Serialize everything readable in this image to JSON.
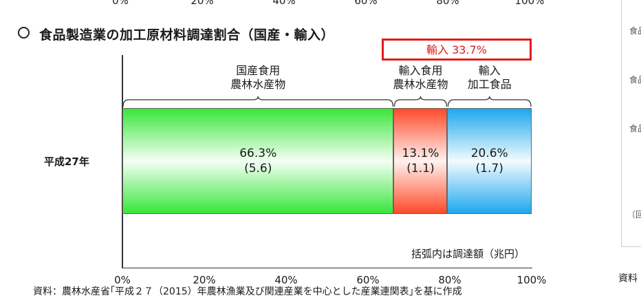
{
  "top_axis": {
    "ticks": [
      "0%",
      "20%",
      "40%",
      "60%",
      "80%",
      "100%"
    ]
  },
  "title": "食品製造業の加工原材料調達割合（国産・輸入）",
  "import_callout": "輸入  33.7%",
  "chart_data": {
    "type": "bar",
    "orientation": "horizontal",
    "stacked": true,
    "categories": [
      "平成27年"
    ],
    "series": [
      {
        "name": "国産食用\n農林水産物",
        "values": [
          66.3
        ],
        "amount": [
          5.6
        ],
        "pct_label": "66.3%",
        "amount_label": "(5.6)",
        "color": "#39e639"
      },
      {
        "name": "輸入食用\n農林水産物",
        "values": [
          13.1
        ],
        "amount": [
          1.1
        ],
        "pct_label": "13.1%",
        "amount_label": "(1.1)",
        "color": "#ff4a2a"
      },
      {
        "name": "輸入\n加工食品",
        "values": [
          20.6
        ],
        "amount": [
          1.7
        ],
        "pct_label": "20.6%",
        "amount_label": "(1.7)",
        "color": "#1ea7ec"
      }
    ],
    "xlim": [
      0,
      100
    ],
    "xticks": [
      "0%",
      "20%",
      "40%",
      "60%",
      "80%",
      "100%"
    ],
    "note": "括弧内は調達額（兆円）"
  },
  "source": "資料：農林水産省｢平成２７（2015）年農林漁業及び関連産業を中心とした産業連関表｣を基に作成",
  "side_panel": {
    "labels": [
      "食品",
      "食品",
      "食品",
      "〔回"
    ],
    "source": "資料"
  }
}
